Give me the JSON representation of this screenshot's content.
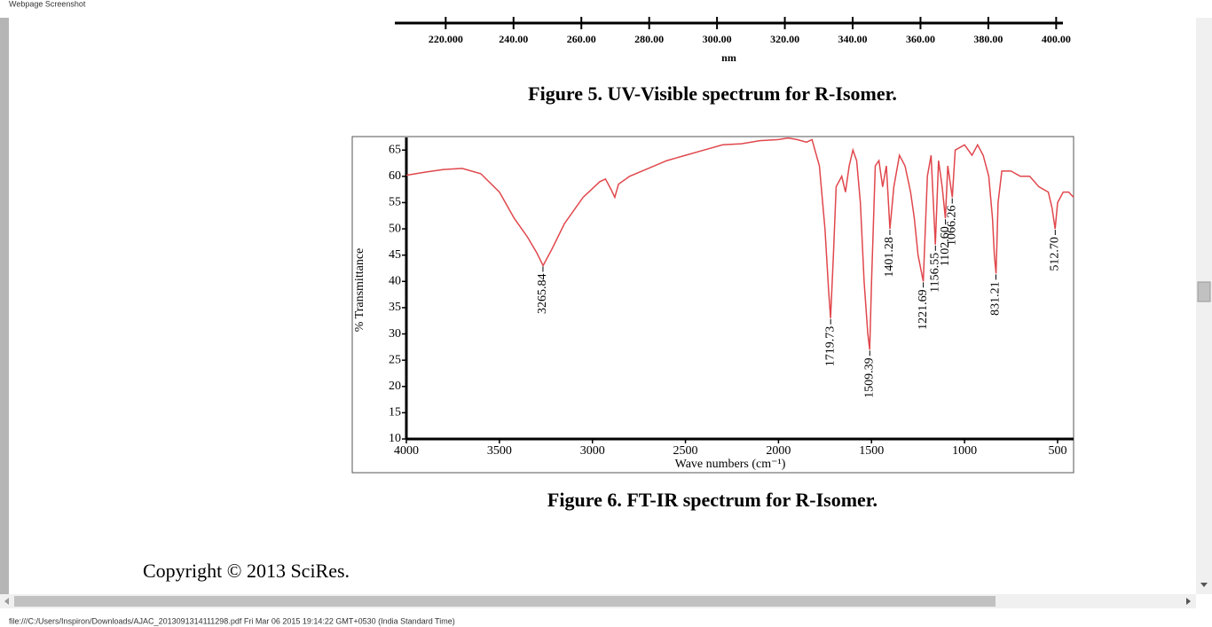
{
  "header": {
    "title": "Webpage Screenshot"
  },
  "chart_data": [
    {
      "type": "axis",
      "xlabel": "nm",
      "xlim": [
        205,
        402
      ],
      "xticks": [
        {
          "value": 220,
          "label": "220.000"
        },
        {
          "value": 240,
          "label": "240.00"
        },
        {
          "value": 260,
          "label": "260.00"
        },
        {
          "value": 280,
          "label": "280.00"
        },
        {
          "value": 300,
          "label": "300.00"
        },
        {
          "value": 320,
          "label": "320.00"
        },
        {
          "value": 340,
          "label": "340.00"
        },
        {
          "value": 360,
          "label": "360.00"
        },
        {
          "value": 380,
          "label": "380.00"
        },
        {
          "value": 400,
          "label": "400.00"
        }
      ]
    },
    {
      "type": "line",
      "xlabel": "Wave numbers (cm⁻¹)",
      "ylabel": "% Transmittance",
      "xlim": [
        4000,
        414
      ],
      "ylim": [
        10,
        67.4
      ],
      "xticks": [
        4000,
        3500,
        3000,
        2500,
        2000,
        1500,
        1000,
        500
      ],
      "yticks": [
        10,
        15,
        20,
        25,
        30,
        35,
        40,
        45,
        50,
        55,
        60,
        65
      ],
      "x": [
        4000,
        3900,
        3800,
        3700,
        3600,
        3500,
        3420,
        3350,
        3300,
        3265,
        3220,
        3150,
        3050,
        2960,
        2930,
        2900,
        2880,
        2860,
        2800,
        2700,
        2600,
        2500,
        2400,
        2300,
        2200,
        2100,
        2000,
        1950,
        1900,
        1850,
        1820,
        1780,
        1750,
        1730,
        1720,
        1705,
        1690,
        1660,
        1640,
        1620,
        1600,
        1580,
        1560,
        1540,
        1520,
        1510,
        1500,
        1480,
        1460,
        1440,
        1420,
        1401,
        1380,
        1350,
        1320,
        1290,
        1270,
        1250,
        1222,
        1200,
        1180,
        1157,
        1140,
        1120,
        1103,
        1090,
        1066,
        1050,
        1000,
        960,
        930,
        900,
        870,
        850,
        840,
        831,
        820,
        800,
        750,
        700,
        650,
        600,
        550,
        530,
        513,
        500,
        470,
        440,
        414
      ],
      "series": [
        {
          "color": "#e0474c",
          "values": [
            60.2,
            60.8,
            61.3,
            61.5,
            60.5,
            57,
            52,
            48.5,
            45.5,
            43,
            46,
            51,
            56,
            59,
            59.5,
            57.5,
            56,
            58.5,
            60,
            61.5,
            63,
            64,
            65,
            66,
            66.2,
            66.8,
            67,
            67.3,
            67,
            66.5,
            67,
            62,
            50,
            38,
            33,
            45,
            58,
            60,
            57,
            62,
            65,
            63,
            55,
            40,
            30,
            27,
            40,
            62,
            63,
            58,
            62,
            50,
            58,
            64,
            62,
            57,
            52,
            45,
            40,
            60,
            64,
            47,
            63,
            58,
            52,
            62,
            56,
            65,
            66,
            64,
            66,
            64,
            60,
            52,
            45,
            41.5,
            55,
            61,
            61,
            60,
            60,
            58,
            57,
            54,
            50,
            55,
            57,
            57,
            56
          ]
        }
      ],
      "annotations": [
        {
          "x": 3265.84,
          "y": 43,
          "text": "3265.84"
        },
        {
          "x": 1719.73,
          "y": 33,
          "text": "1719.73"
        },
        {
          "x": 1509.39,
          "y": 27,
          "text": "1509.39"
        },
        {
          "x": 1401.28,
          "y": 50,
          "text": "1401.28"
        },
        {
          "x": 1221.69,
          "y": 40,
          "text": "1221.69"
        },
        {
          "x": 1156.55,
          "y": 47,
          "text": "1156.55"
        },
        {
          "x": 1102.6,
          "y": 52,
          "text": "1102.60"
        },
        {
          "x": 1066.26,
          "y": 56,
          "text": "1066.26"
        },
        {
          "x": 831.21,
          "y": 41.5,
          "text": "831.21"
        },
        {
          "x": 512.7,
          "y": 50,
          "text": "512.70"
        }
      ]
    }
  ],
  "captions": [
    "Figure 5. UV-Visible spectrum for R-Isomer.",
    "Figure 6. FT-IR spectrum for R-Isomer."
  ],
  "copyright": "Copyright © 2013  SciRes.",
  "status_bar": "file:///C:/Users/Inspiron/Downloads/AJAC_2013091314111298.pdf Fri Mar 06 2015 19:14:22 GMT+0530 (India Standard Time)"
}
